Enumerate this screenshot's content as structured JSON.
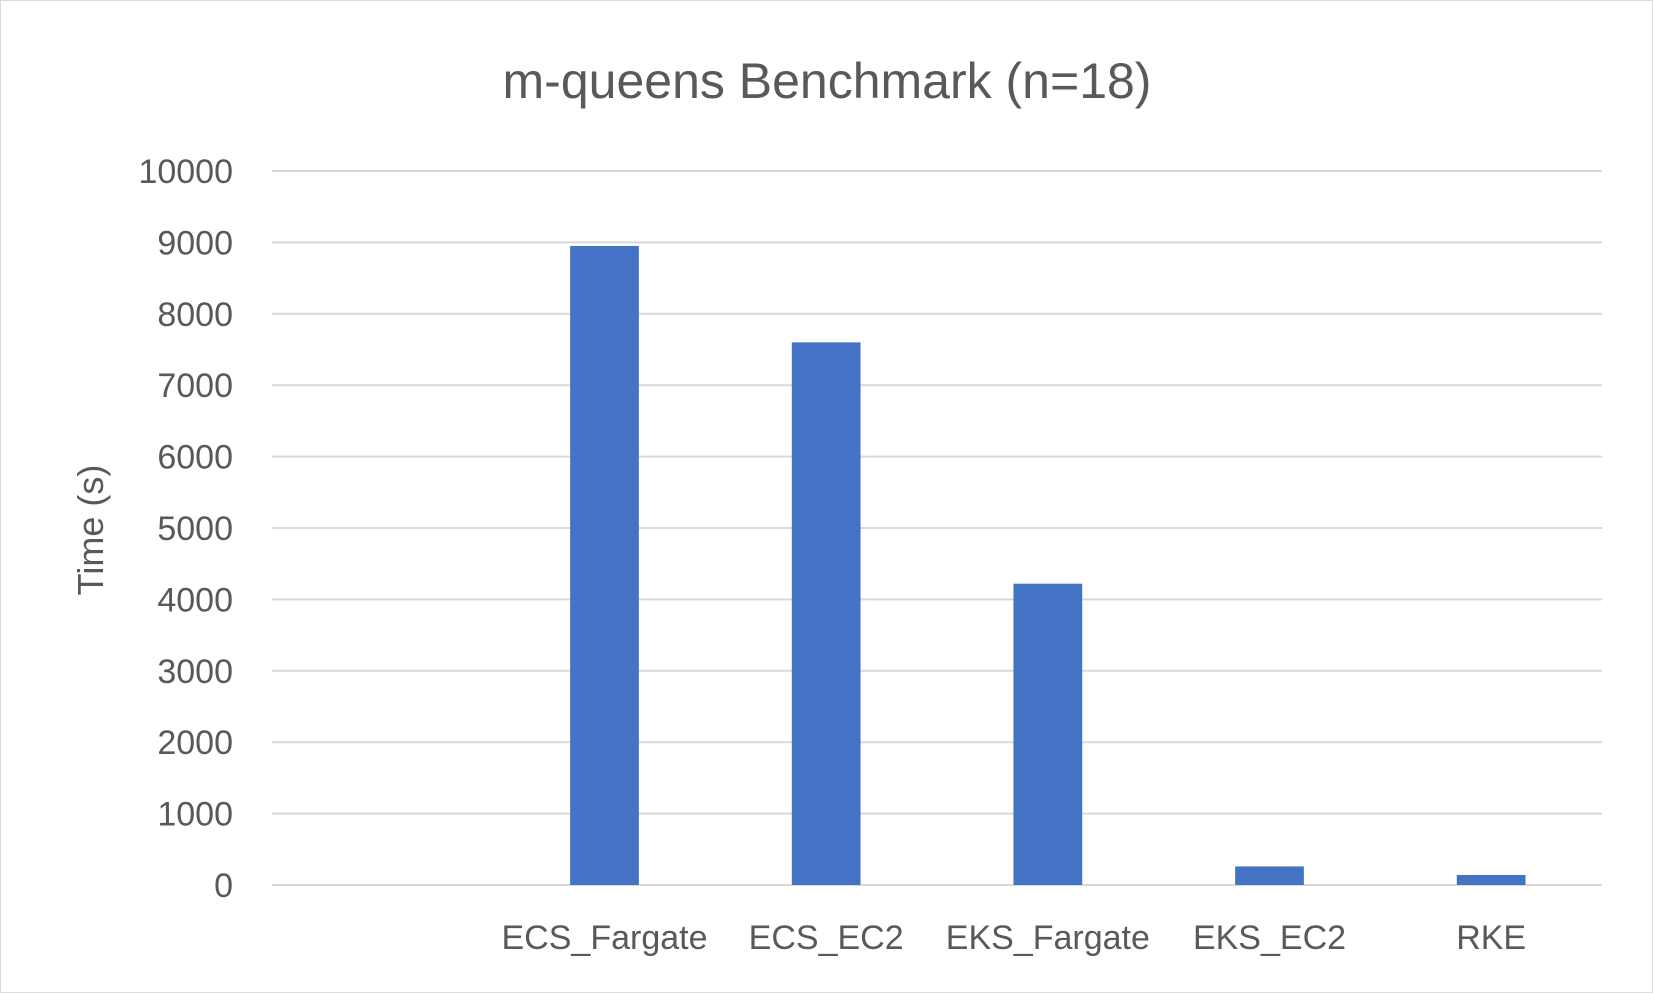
{
  "chart_data": {
    "type": "bar",
    "title": "m-queens Benchmark (n=18)",
    "xlabel": "",
    "ylabel": "Time (s)",
    "categories": [
      "",
      "ECS_Fargate",
      "ECS_EC2",
      "EKS_Fargate",
      "EKS_EC2",
      "RKE"
    ],
    "values": [
      0,
      8950,
      7600,
      4220,
      260,
      140
    ],
    "ylim": [
      0,
      10000
    ],
    "yticks": [
      "0",
      "1000",
      "2000",
      "3000",
      "4000",
      "5000",
      "6000",
      "7000",
      "8000",
      "9000",
      "10000"
    ],
    "grid": true,
    "legend": "none",
    "colors": {
      "bar": "#4472c4",
      "grid": "#d9d9d9",
      "text": "#595959"
    }
  }
}
